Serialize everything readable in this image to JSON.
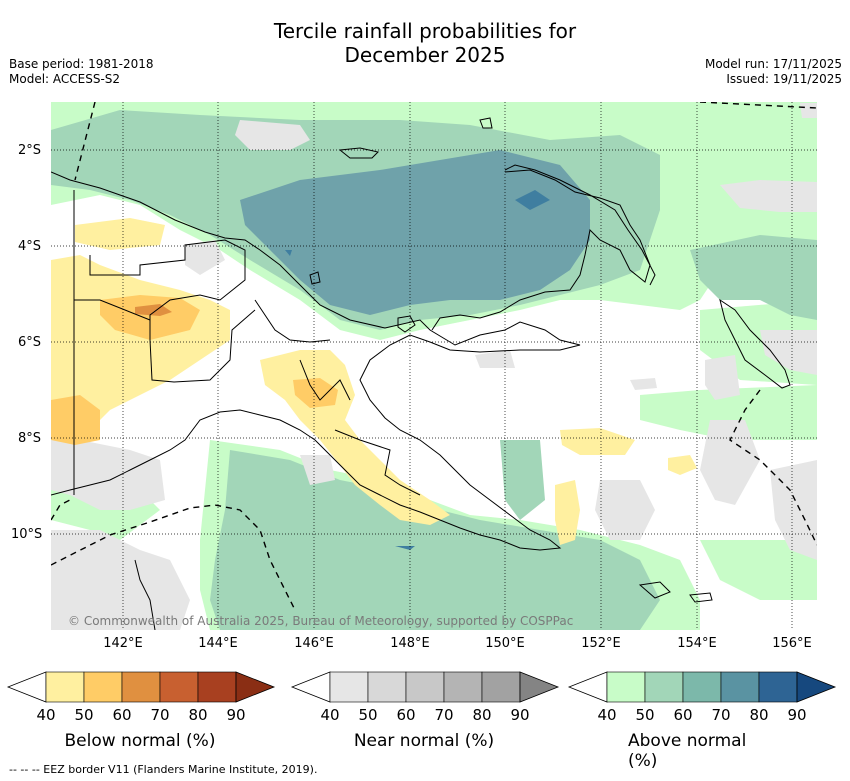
{
  "title_line1": "Tercile rainfall probabilities for",
  "title_line2": "December 2025",
  "base_period": "Base period: 1981-2018",
  "model": "Model: ACCESS-S2",
  "model_run": "Model run: 17/11/2025",
  "issued": "Issued: 19/11/2025",
  "lat_ticks": [
    "2°S",
    "4°S",
    "6°S",
    "8°S",
    "10°S"
  ],
  "lon_ticks": [
    "142°E",
    "144°E",
    "146°E",
    "148°E",
    "150°E",
    "152°E",
    "154°E",
    "156°E"
  ],
  "copyright": "© Commonwealth of Australia 2025, Bureau of Meteorology, supported by COSPPac",
  "colorbars": [
    {
      "title": "Below normal (%)",
      "ticks": [
        "40",
        "50",
        "60",
        "70",
        "80",
        "90"
      ],
      "colors": [
        "#fff0a0",
        "#ffcc66",
        "#e09040",
        "#c86030",
        "#a84020",
        "#8a2e14"
      ]
    },
    {
      "title": "Near normal (%)",
      "ticks": [
        "40",
        "50",
        "60",
        "70",
        "80",
        "90"
      ],
      "colors": [
        "#e6e6e6",
        "#d8d8d8",
        "#c8c8c8",
        "#b4b4b4",
        "#a2a2a2",
        "#848484"
      ]
    },
    {
      "title": "Above normal (%)",
      "ticks": [
        "40",
        "50",
        "60",
        "70",
        "80",
        "90"
      ],
      "colors": [
        "#c8fcc8",
        "#a2d6b8",
        "#7cb8aa",
        "#5a93a2",
        "#2e6494",
        "#16487e"
      ]
    }
  ],
  "footer": "--  --  -- EEZ border V11 (Flanders Marine Institute, 2019)."
}
